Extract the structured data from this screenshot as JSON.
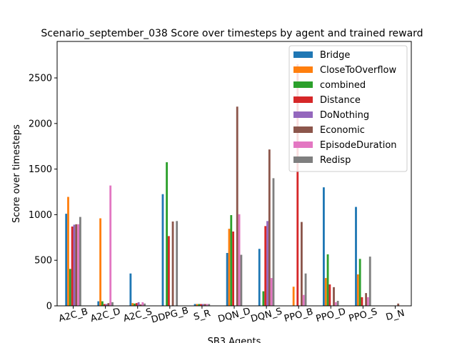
{
  "chart_data": {
    "type": "bar",
    "title": "Scenario_september_038 Score over timesteps by agent and trained reward",
    "xlabel": "SB3 Agents",
    "ylabel": "Score over timesteps",
    "ylim": [
      0,
      2900
    ],
    "yticks": [
      0,
      500,
      1000,
      1500,
      2000,
      2500
    ],
    "legend_position": "top-right",
    "categories": [
      "A2C_B",
      "A2C_D",
      "A2C_S",
      "DDPG_B",
      "S_R",
      "DQN_D",
      "DQN_S",
      "PPO_B",
      "PPO_D",
      "PPO_S",
      "D_N"
    ],
    "series": [
      {
        "name": "Bridge",
        "color": "#1f77b4",
        "values": [
          1010,
          50,
          355,
          1225,
          20,
          580,
          625,
          0,
          1300,
          1085,
          0
        ]
      },
      {
        "name": "CloseToOverflow",
        "color": "#ff7f0e",
        "values": [
          1195,
          960,
          30,
          0,
          20,
          845,
          0,
          210,
          305,
          345,
          0
        ]
      },
      {
        "name": "combined",
        "color": "#2ca02c",
        "values": [
          405,
          50,
          25,
          1575,
          20,
          995,
          160,
          0,
          565,
          515,
          0
        ]
      },
      {
        "name": "Distance",
        "color": "#d62728",
        "values": [
          870,
          20,
          30,
          765,
          20,
          815,
          875,
          2650,
          235,
          95,
          0
        ]
      },
      {
        "name": "DoNothing",
        "color": "#9467bd",
        "values": [
          890,
          20,
          40,
          0,
          20,
          0,
          930,
          0,
          0,
          0,
          0
        ]
      },
      {
        "name": "Economic",
        "color": "#8c564b",
        "values": [
          895,
          30,
          15,
          925,
          20,
          2185,
          1715,
          920,
          205,
          140,
          25
        ]
      },
      {
        "name": "EpisodeDuration",
        "color": "#e377c2",
        "values": [
          895,
          1320,
          40,
          0,
          20,
          1005,
          305,
          120,
          40,
          95,
          0
        ]
      },
      {
        "name": "Redisp",
        "color": "#7f7f7f",
        "values": [
          975,
          40,
          25,
          930,
          20,
          560,
          1400,
          355,
          55,
          540,
          0
        ]
      }
    ]
  }
}
